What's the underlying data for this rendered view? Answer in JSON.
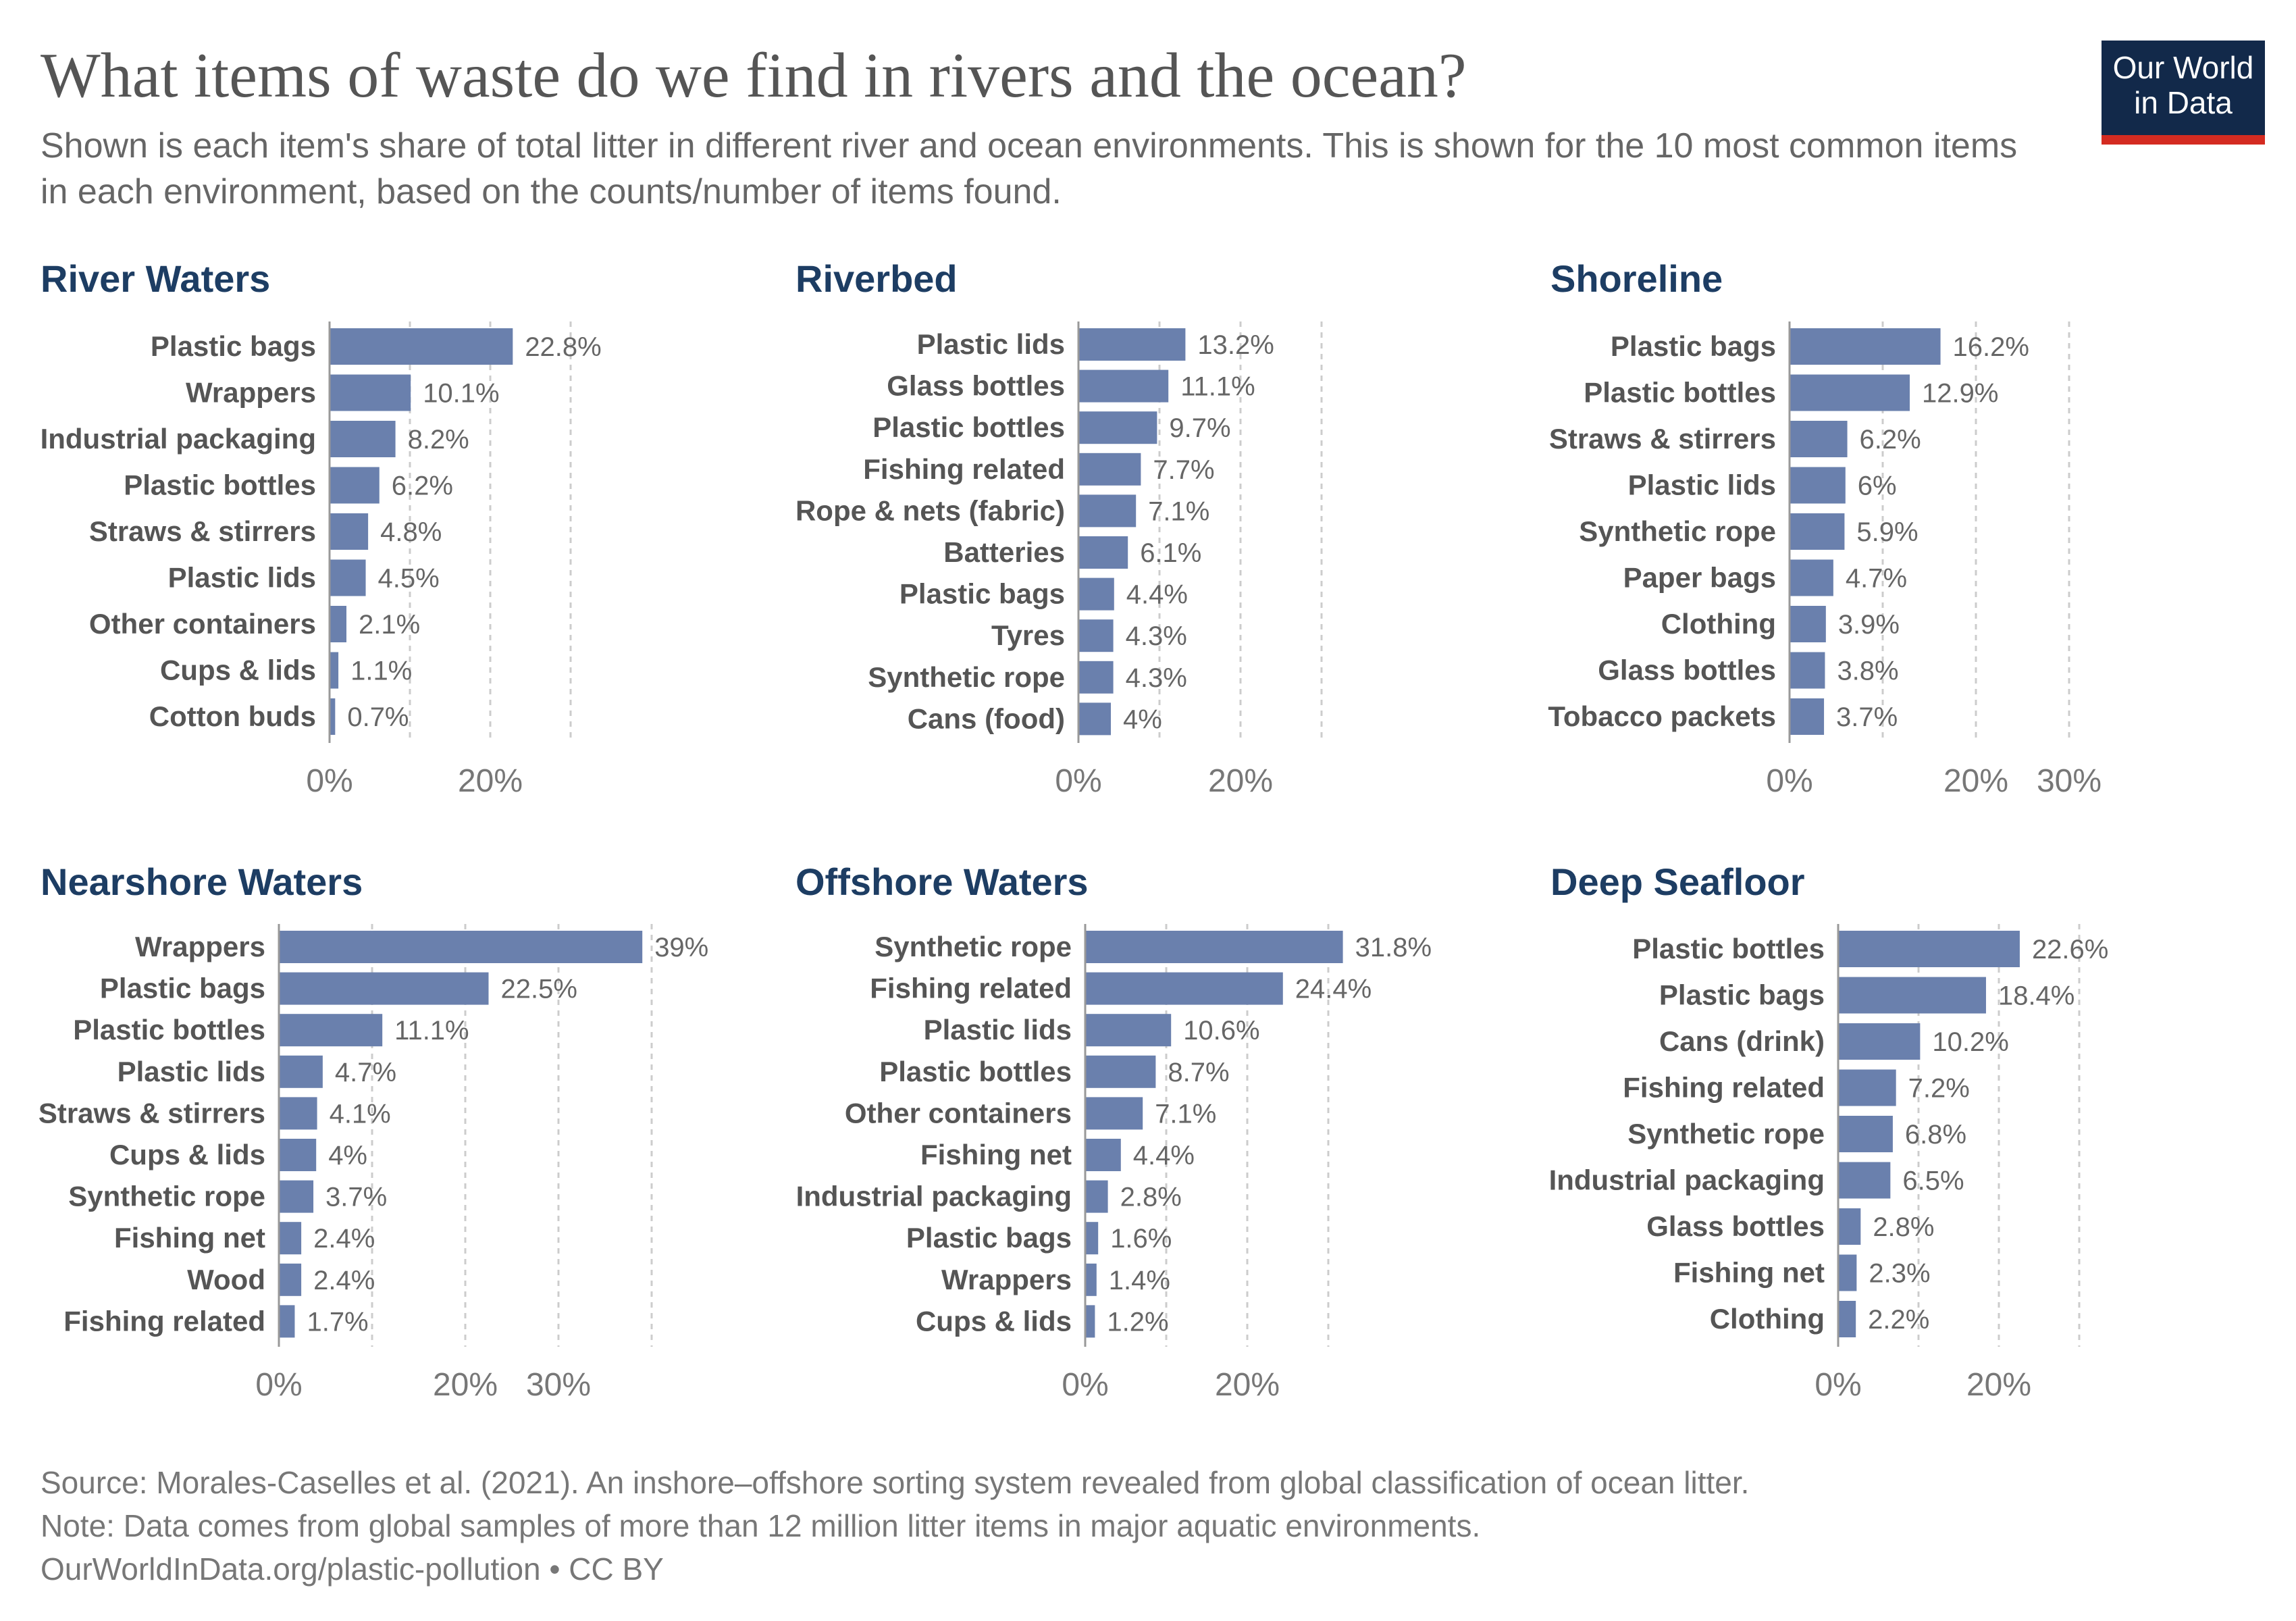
{
  "title": "What items of waste do we find in rivers and the ocean?",
  "subtitle": "Shown is each item's share of total litter in different river and ocean environments. This is shown for the 10 most common items in each environment, based on the counts/number of items found.",
  "logo": {
    "line1": "Our World",
    "line2": "in Data"
  },
  "footer": {
    "source": "Source: Morales-Caselles et al. (2021). An inshore–offshore sorting system revealed from global classification of ocean litter.",
    "note": "Note: Data comes from global samples of more than 12 million litter items in major aquatic environments.",
    "url": "OurWorldInData.org/plastic-pollution • CC BY"
  },
  "colors": {
    "bar": "#6a80ad",
    "panel_title": "#1d3d63",
    "logo_bg": "#12294a",
    "logo_accent": "#d42b21"
  },
  "chart_data": [
    {
      "type": "bar",
      "orientation": "horizontal",
      "title": "River Waters",
      "unit": "%",
      "xlim": [
        0,
        30
      ],
      "ticks": [
        {
          "value": 0,
          "label": "0%"
        },
        {
          "value": 20,
          "label": "20%"
        }
      ],
      "categories": [
        "Plastic bags",
        "Wrappers",
        "Industrial packaging",
        "Plastic bottles",
        "Straws & stirrers",
        "Plastic lids",
        "Other containers",
        "Cups & lids",
        "Cotton buds"
      ],
      "values": [
        22.8,
        10.1,
        8.2,
        6.2,
        4.8,
        4.5,
        2.1,
        1.1,
        0.7
      ],
      "value_labels": [
        "22.8%",
        "10.1%",
        "8.2%",
        "6.2%",
        "4.8%",
        "4.5%",
        "2.1%",
        "1.1%",
        "0.7%"
      ]
    },
    {
      "type": "bar",
      "orientation": "horizontal",
      "title": "Riverbed",
      "unit": "%",
      "xlim": [
        0,
        30
      ],
      "ticks": [
        {
          "value": 0,
          "label": "0%"
        },
        {
          "value": 20,
          "label": "20%"
        }
      ],
      "categories": [
        "Plastic lids",
        "Glass bottles",
        "Plastic bottles",
        "Fishing related",
        "Rope & nets (fabric)",
        "Batteries",
        "Plastic bags",
        "Tyres",
        "Synthetic rope",
        "Cans (food)"
      ],
      "values": [
        13.2,
        11.1,
        9.7,
        7.7,
        7.1,
        6.1,
        4.4,
        4.3,
        4.3,
        4
      ],
      "value_labels": [
        "13.2%",
        "11.1%",
        "9.7%",
        "7.7%",
        "7.1%",
        "6.1%",
        "4.4%",
        "4.3%",
        "4.3%",
        "4%"
      ]
    },
    {
      "type": "bar",
      "orientation": "horizontal",
      "title": "Shoreline",
      "unit": "%",
      "xlim": [
        0,
        30
      ],
      "ticks": [
        {
          "value": 0,
          "label": "0%"
        },
        {
          "value": 20,
          "label": "20%"
        },
        {
          "value": 30,
          "label": "30%"
        }
      ],
      "categories": [
        "Plastic bags",
        "Plastic bottles",
        "Straws & stirrers",
        "Plastic lids",
        "Synthetic rope",
        "Paper bags",
        "Clothing",
        "Glass bottles",
        "Tobacco packets"
      ],
      "values": [
        16.2,
        12.9,
        6.2,
        6,
        5.9,
        4.7,
        3.9,
        3.8,
        3.7
      ],
      "value_labels": [
        "16.2%",
        "12.9%",
        "6.2%",
        "6%",
        "5.9%",
        "4.7%",
        "3.9%",
        "3.8%",
        "3.7%"
      ]
    },
    {
      "type": "bar",
      "orientation": "horizontal",
      "title": "Nearshore Waters",
      "unit": "%",
      "xlim": [
        0,
        40
      ],
      "ticks": [
        {
          "value": 0,
          "label": "0%"
        },
        {
          "value": 20,
          "label": "20%"
        },
        {
          "value": 30,
          "label": "30%"
        }
      ],
      "categories": [
        "Wrappers",
        "Plastic bags",
        "Plastic bottles",
        "Plastic lids",
        "Straws & stirrers",
        "Cups & lids",
        "Synthetic rope",
        "Fishing net",
        "Wood",
        "Fishing related"
      ],
      "values": [
        39,
        22.5,
        11.1,
        4.7,
        4.1,
        4,
        3.7,
        2.4,
        2.4,
        1.7
      ],
      "value_labels": [
        "39%",
        "22.5%",
        "11.1%",
        "4.7%",
        "4.1%",
        "4%",
        "3.7%",
        "2.4%",
        "2.4%",
        "1.7%"
      ]
    },
    {
      "type": "bar",
      "orientation": "horizontal",
      "title": "Offshore Waters",
      "unit": "%",
      "xlim": [
        0,
        30
      ],
      "ticks": [
        {
          "value": 0,
          "label": "0%"
        },
        {
          "value": 20,
          "label": "20%"
        }
      ],
      "categories": [
        "Synthetic rope",
        "Fishing related",
        "Plastic lids",
        "Plastic bottles",
        "Other containers",
        "Fishing net",
        "Industrial packaging",
        "Plastic bags",
        "Wrappers",
        "Cups & lids"
      ],
      "values": [
        31.8,
        24.4,
        10.6,
        8.7,
        7.1,
        4.4,
        2.8,
        1.6,
        1.4,
        1.2
      ],
      "value_labels": [
        "31.8%",
        "24.4%",
        "10.6%",
        "8.7%",
        "7.1%",
        "4.4%",
        "2.8%",
        "1.6%",
        "1.4%",
        "1.2%"
      ]
    },
    {
      "type": "bar",
      "orientation": "horizontal",
      "title": "Deep Seafloor",
      "unit": "%",
      "xlim": [
        0,
        30
      ],
      "ticks": [
        {
          "value": 0,
          "label": "0%"
        },
        {
          "value": 20,
          "label": "20%"
        }
      ],
      "categories": [
        "Plastic bottles",
        "Plastic bags",
        "Cans (drink)",
        "Fishing related",
        "Synthetic rope",
        "Industrial packaging",
        "Glass bottles",
        "Fishing net",
        "Clothing"
      ],
      "values": [
        22.6,
        18.4,
        10.2,
        7.2,
        6.8,
        6.5,
        2.8,
        2.3,
        2.2
      ],
      "value_labels": [
        "22.6%",
        "18.4%",
        "10.2%",
        "7.2%",
        "6.8%",
        "6.5%",
        "2.8%",
        "2.3%",
        "2.2%"
      ]
    }
  ]
}
